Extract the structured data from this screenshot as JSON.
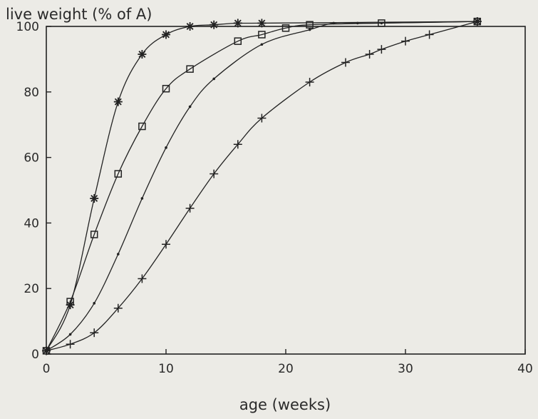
{
  "chart_data": {
    "type": "line",
    "title": "",
    "ylabel": "live weight (% of A)",
    "xlabel": "age (weeks)",
    "xlim": [
      0,
      40
    ],
    "ylim": [
      0,
      100
    ],
    "x_ticks": [
      0,
      10,
      20,
      30,
      40
    ],
    "y_ticks": [
      0,
      20,
      40,
      60,
      80,
      100
    ],
    "grid": false,
    "legend": "none",
    "series": [
      {
        "marker": "asterisk",
        "color": "#222222",
        "points": [
          [
            0,
            1
          ],
          [
            2,
            15
          ],
          [
            4,
            47.5
          ],
          [
            6,
            77
          ],
          [
            8,
            91.5
          ],
          [
            10,
            97.5
          ],
          [
            12,
            100
          ],
          [
            14,
            100.5
          ],
          [
            16,
            101
          ],
          [
            18,
            101
          ],
          [
            36,
            101.5
          ]
        ]
      },
      {
        "marker": "square",
        "color": "#222222",
        "points": [
          [
            0,
            1
          ],
          [
            2,
            16
          ],
          [
            4,
            36.5
          ],
          [
            6,
            55
          ],
          [
            8,
            69.5
          ],
          [
            10,
            81
          ],
          [
            12,
            87
          ],
          [
            16,
            95.5
          ],
          [
            18,
            97.5
          ],
          [
            20,
            99.5
          ],
          [
            22,
            100.5
          ],
          [
            28,
            101
          ],
          [
            36,
            101.5
          ]
        ]
      },
      {
        "marker": "dot",
        "color": "#222222",
        "points": [
          [
            0,
            1
          ],
          [
            2,
            6
          ],
          [
            4,
            15.5
          ],
          [
            6,
            30.5
          ],
          [
            8,
            47.5
          ],
          [
            10,
            63
          ],
          [
            12,
            75.5
          ],
          [
            14,
            84
          ],
          [
            18,
            94.5
          ],
          [
            22,
            99
          ],
          [
            24,
            101
          ],
          [
            26,
            101
          ],
          [
            28,
            101
          ],
          [
            36,
            101.5
          ]
        ]
      },
      {
        "marker": "plus",
        "color": "#222222",
        "points": [
          [
            0,
            1
          ],
          [
            2,
            3
          ],
          [
            4,
            6.5
          ],
          [
            6,
            14
          ],
          [
            8,
            23
          ],
          [
            10,
            33.5
          ],
          [
            12,
            44.5
          ],
          [
            14,
            55
          ],
          [
            16,
            64
          ],
          [
            18,
            72
          ],
          [
            22,
            83
          ],
          [
            25,
            89
          ],
          [
            27,
            91.5
          ],
          [
            28,
            93
          ],
          [
            30,
            95.5
          ],
          [
            32,
            97.5
          ],
          [
            36,
            101.5
          ]
        ]
      }
    ]
  }
}
